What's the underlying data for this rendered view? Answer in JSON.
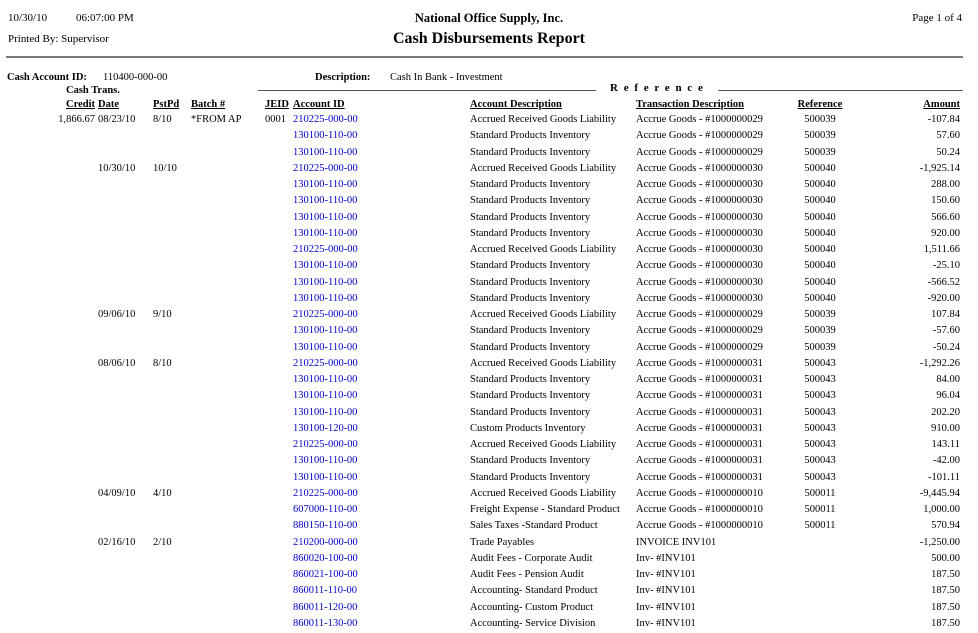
{
  "page": {
    "print_date": "10/30/10",
    "print_time": "06:07:00 PM",
    "printed_by": "Printed By: Supervisor",
    "company_name": "National Office Supply, Inc.",
    "report_title": "Cash Disbursements Report",
    "page_indicator": "Page 1 of 4"
  },
  "account_header": {
    "cash_account_id_label": "Cash Account ID:",
    "cash_account_id": "110400-000-00",
    "description_label": "Description:",
    "description": "Cash In Bank - Investment",
    "reference_group_label": "R e f e r e n c e"
  },
  "table": {
    "headers": {
      "cash_trans_label": "Cash Trans.",
      "credit": "Credit",
      "date": "Date",
      "pstpd": "PstPd",
      "batch": "Batch #",
      "jeid": "JEID",
      "account_id": "Account ID",
      "account_desc": "Account Description",
      "trans_desc": "Transaction Description",
      "reference": "Reference",
      "amount": "Amount"
    },
    "rows": [
      {
        "credit": "1,866.67",
        "date": "08/23/10",
        "pstpd": "8/10",
        "batch": "*FROM AP",
        "jeid": "0001",
        "account_id": "210225-000-00",
        "account_desc": "Accrued Received Goods Liability",
        "trans_desc": "Accrue Goods - #1000000029",
        "reference": "500039",
        "amount": "-107.84"
      },
      {
        "credit": "",
        "date": "",
        "pstpd": "",
        "batch": "",
        "jeid": "",
        "account_id": "130100-110-00",
        "account_desc": "Standard Products Inventory",
        "trans_desc": "Accrue Goods - #1000000029",
        "reference": "500039",
        "amount": "57.60"
      },
      {
        "credit": "",
        "date": "",
        "pstpd": "",
        "batch": "",
        "jeid": "",
        "account_id": "130100-110-00",
        "account_desc": "Standard Products Inventory",
        "trans_desc": "Accrue Goods - #1000000029",
        "reference": "500039",
        "amount": "50.24"
      },
      {
        "credit": "",
        "date": "10/30/10",
        "pstpd": "10/10",
        "batch": "",
        "jeid": "",
        "account_id": "210225-000-00",
        "account_desc": "Accrued Received Goods Liability",
        "trans_desc": "Accrue Goods - #1000000030",
        "reference": "500040",
        "amount": "-1,925.14"
      },
      {
        "credit": "",
        "date": "",
        "pstpd": "",
        "batch": "",
        "jeid": "",
        "account_id": "130100-110-00",
        "account_desc": "Standard Products Inventory",
        "trans_desc": "Accrue Goods - #1000000030",
        "reference": "500040",
        "amount": "288.00"
      },
      {
        "credit": "",
        "date": "",
        "pstpd": "",
        "batch": "",
        "jeid": "",
        "account_id": "130100-110-00",
        "account_desc": "Standard Products Inventory",
        "trans_desc": "Accrue Goods - #1000000030",
        "reference": "500040",
        "amount": "150.60"
      },
      {
        "credit": "",
        "date": "",
        "pstpd": "",
        "batch": "",
        "jeid": "",
        "account_id": "130100-110-00",
        "account_desc": "Standard Products Inventory",
        "trans_desc": "Accrue Goods - #1000000030",
        "reference": "500040",
        "amount": "566.60"
      },
      {
        "credit": "",
        "date": "",
        "pstpd": "",
        "batch": "",
        "jeid": "",
        "account_id": "130100-110-00",
        "account_desc": "Standard Products Inventory",
        "trans_desc": "Accrue Goods - #1000000030",
        "reference": "500040",
        "amount": "920.00"
      },
      {
        "credit": "",
        "date": "",
        "pstpd": "",
        "batch": "",
        "jeid": "",
        "account_id": "210225-000-00",
        "account_desc": "Accrued Received Goods Liability",
        "trans_desc": "Accrue Goods - #1000000030",
        "reference": "500040",
        "amount": "1,511.66"
      },
      {
        "credit": "",
        "date": "",
        "pstpd": "",
        "batch": "",
        "jeid": "",
        "account_id": "130100-110-00",
        "account_desc": "Standard Products Inventory",
        "trans_desc": "Accrue Goods - #1000000030",
        "reference": "500040",
        "amount": "-25.10"
      },
      {
        "credit": "",
        "date": "",
        "pstpd": "",
        "batch": "",
        "jeid": "",
        "account_id": "130100-110-00",
        "account_desc": "Standard Products Inventory",
        "trans_desc": "Accrue Goods - #1000000030",
        "reference": "500040",
        "amount": "-566.52"
      },
      {
        "credit": "",
        "date": "",
        "pstpd": "",
        "batch": "",
        "jeid": "",
        "account_id": "130100-110-00",
        "account_desc": "Standard Products Inventory",
        "trans_desc": "Accrue Goods - #1000000030",
        "reference": "500040",
        "amount": "-920.00"
      },
      {
        "credit": "",
        "date": "09/06/10",
        "pstpd": "9/10",
        "batch": "",
        "jeid": "",
        "account_id": "210225-000-00",
        "account_desc": "Accrued Received Goods Liability",
        "trans_desc": "Accrue Goods - #1000000029",
        "reference": "500039",
        "amount": "107.84"
      },
      {
        "credit": "",
        "date": "",
        "pstpd": "",
        "batch": "",
        "jeid": "",
        "account_id": "130100-110-00",
        "account_desc": "Standard Products Inventory",
        "trans_desc": "Accrue Goods - #1000000029",
        "reference": "500039",
        "amount": "-57.60"
      },
      {
        "credit": "",
        "date": "",
        "pstpd": "",
        "batch": "",
        "jeid": "",
        "account_id": "130100-110-00",
        "account_desc": "Standard Products Inventory",
        "trans_desc": "Accrue Goods - #1000000029",
        "reference": "500039",
        "amount": "-50.24"
      },
      {
        "credit": "",
        "date": "08/06/10",
        "pstpd": "8/10",
        "batch": "",
        "jeid": "",
        "account_id": "210225-000-00",
        "account_desc": "Accrued Received Goods Liability",
        "trans_desc": "Accrue Goods - #1000000031",
        "reference": "500043",
        "amount": "-1,292.26"
      },
      {
        "credit": "",
        "date": "",
        "pstpd": "",
        "batch": "",
        "jeid": "",
        "account_id": "130100-110-00",
        "account_desc": "Standard Products Inventory",
        "trans_desc": "Accrue Goods - #1000000031",
        "reference": "500043",
        "amount": "84.00"
      },
      {
        "credit": "",
        "date": "",
        "pstpd": "",
        "batch": "",
        "jeid": "",
        "account_id": "130100-110-00",
        "account_desc": "Standard Products Inventory",
        "trans_desc": "Accrue Goods - #1000000031",
        "reference": "500043",
        "amount": "96.04"
      },
      {
        "credit": "",
        "date": "",
        "pstpd": "",
        "batch": "",
        "jeid": "",
        "account_id": "130100-110-00",
        "account_desc": "Standard Products Inventory",
        "trans_desc": "Accrue Goods - #1000000031",
        "reference": "500043",
        "amount": "202.20"
      },
      {
        "credit": "",
        "date": "",
        "pstpd": "",
        "batch": "",
        "jeid": "",
        "account_id": "130100-120-00",
        "account_desc": "Custom Products Inventory",
        "trans_desc": "Accrue Goods - #1000000031",
        "reference": "500043",
        "amount": "910.00"
      },
      {
        "credit": "",
        "date": "",
        "pstpd": "",
        "batch": "",
        "jeid": "",
        "account_id": "210225-000-00",
        "account_desc": "Accrued Received Goods Liability",
        "trans_desc": "Accrue Goods - #1000000031",
        "reference": "500043",
        "amount": "143.11"
      },
      {
        "credit": "",
        "date": "",
        "pstpd": "",
        "batch": "",
        "jeid": "",
        "account_id": "130100-110-00",
        "account_desc": "Standard Products Inventory",
        "trans_desc": "Accrue Goods - #1000000031",
        "reference": "500043",
        "amount": "-42.00"
      },
      {
        "credit": "",
        "date": "",
        "pstpd": "",
        "batch": "",
        "jeid": "",
        "account_id": "130100-110-00",
        "account_desc": "Standard Products Inventory",
        "trans_desc": "Accrue Goods - #1000000031",
        "reference": "500043",
        "amount": "-101.11"
      },
      {
        "credit": "",
        "date": "04/09/10",
        "pstpd": "4/10",
        "batch": "",
        "jeid": "",
        "account_id": "210225-000-00",
        "account_desc": "Accrued Received Goods Liability",
        "trans_desc": "Accrue Goods - #1000000010",
        "reference": "500011",
        "amount": "-9,445.94"
      },
      {
        "credit": "",
        "date": "",
        "pstpd": "",
        "batch": "",
        "jeid": "",
        "account_id": "607000-110-00",
        "account_desc": "Freight Expense - Standard Product",
        "trans_desc": "Accrue Goods - #1000000010",
        "reference": "500011",
        "amount": "1,000.00"
      },
      {
        "credit": "",
        "date": "",
        "pstpd": "",
        "batch": "",
        "jeid": "",
        "account_id": "880150-110-00",
        "account_desc": "Sales Taxes -Standard Product",
        "trans_desc": "Accrue Goods - #1000000010",
        "reference": "500011",
        "amount": "570.94"
      },
      {
        "credit": "",
        "date": "02/16/10",
        "pstpd": "2/10",
        "batch": "",
        "jeid": "",
        "account_id": "210200-000-00",
        "account_desc": "Trade Payables",
        "trans_desc": "INVOICE INV101",
        "reference": "",
        "amount": "-1,250.00"
      },
      {
        "credit": "",
        "date": "",
        "pstpd": "",
        "batch": "",
        "jeid": "",
        "account_id": "860020-100-00",
        "account_desc": "Audit Fees - Corporate Audit",
        "trans_desc": "Inv- #INV101",
        "reference": "",
        "amount": "500.00"
      },
      {
        "credit": "",
        "date": "",
        "pstpd": "",
        "batch": "",
        "jeid": "",
        "account_id": "860021-100-00",
        "account_desc": "Audit Fees - Pension Audit",
        "trans_desc": "Inv- #INV101",
        "reference": "",
        "amount": "187.50"
      },
      {
        "credit": "",
        "date": "",
        "pstpd": "",
        "batch": "",
        "jeid": "",
        "account_id": "860011-110-00",
        "account_desc": "Accounting- Standard Product",
        "trans_desc": "Inv- #INV101",
        "reference": "",
        "amount": "187.50"
      },
      {
        "credit": "",
        "date": "",
        "pstpd": "",
        "batch": "",
        "jeid": "",
        "account_id": "860011-120-00",
        "account_desc": "Accounting- Custom Product",
        "trans_desc": "Inv- #INV101",
        "reference": "",
        "amount": "187.50"
      },
      {
        "credit": "",
        "date": "",
        "pstpd": "",
        "batch": "",
        "jeid": "",
        "account_id": "860011-130-00",
        "account_desc": "Accounting- Service Division",
        "trans_desc": "Inv- #INV101",
        "reference": "",
        "amount": "187.50"
      }
    ]
  },
  "colors": {
    "link_blue": "#0000CC",
    "text": "#000000",
    "rule_gray": "#7a7a7a"
  }
}
